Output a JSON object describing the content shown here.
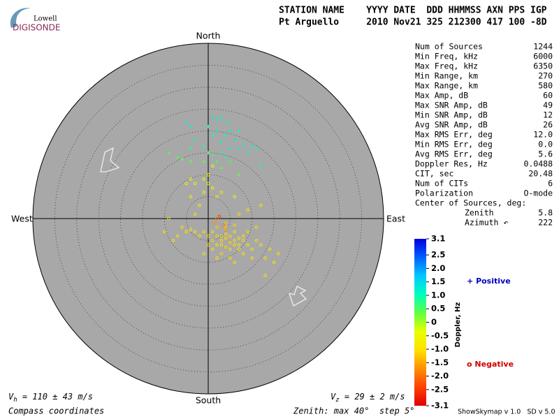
{
  "logo": {
    "line1": "Lowell",
    "line2": "DIGISONDE"
  },
  "header": {
    "labels": "STATION NAME    YYYY DATE  DDD HHMMSS AXN PPS IGP",
    "values": "Pt Arguello     2010 Nov21 325 212300 417 100 -8D"
  },
  "stats": {
    "rows": [
      [
        "Num of Sources",
        "1244"
      ],
      [
        "Min Freq, kHz",
        "6000"
      ],
      [
        "Max Freq, kHz",
        "6350"
      ],
      [
        "Min Range, km",
        "270"
      ],
      [
        "Max Range, km",
        "580"
      ],
      [
        "Max Amp, dB",
        "60"
      ],
      [
        "Max SNR Amp, dB",
        "49"
      ],
      [
        "Min SNR Amp, dB",
        "12"
      ],
      [
        "Avg SNR Amp, dB",
        "26"
      ],
      [
        "Max RMS Err, deg",
        "12.0"
      ],
      [
        "Min RMS Err, deg",
        "0.0"
      ],
      [
        "Avg RMS Err, deg",
        "5.6"
      ],
      [
        "Doppler Res, Hz",
        "0.0488"
      ],
      [
        "CIT, sec",
        "20.48"
      ],
      [
        "Num of CITs",
        "6"
      ],
      [
        "Polarization",
        "O-mode"
      ]
    ],
    "center_title": "Center of Sources, deg:",
    "center_rows": [
      [
        "Zenith",
        "5.8"
      ],
      [
        "Azimuth ↶",
        "222"
      ]
    ]
  },
  "chart_data": {
    "type": "skymap",
    "directions": {
      "north": "North",
      "south": "South",
      "west": "West",
      "east": "East"
    },
    "rlim": [
      0,
      40
    ],
    "rticks": [
      5,
      10,
      15,
      20,
      25,
      30,
      35,
      40
    ],
    "points": [
      [
        -5,
        22,
        1.2
      ],
      [
        -4,
        21,
        1.1
      ],
      [
        1,
        23,
        1.3
      ],
      [
        2,
        22.5,
        1.2
      ],
      [
        3,
        23,
        1.1
      ],
      [
        4.5,
        22,
        1.2
      ],
      [
        0,
        21,
        1.0
      ],
      [
        2,
        20,
        1.1
      ],
      [
        5,
        20,
        1.2
      ],
      [
        7,
        20,
        1.0
      ],
      [
        4,
        19,
        1.1
      ],
      [
        1,
        19,
        1.0
      ],
      [
        6,
        18,
        1.2
      ],
      [
        -3,
        18,
        1.0
      ],
      [
        3,
        17.5,
        1.1
      ],
      [
        8,
        17,
        1.2
      ],
      [
        10,
        16.5,
        1.1
      ],
      [
        11,
        16,
        1.0
      ],
      [
        -4,
        16,
        0.9
      ],
      [
        -1,
        16.5,
        1.0
      ],
      [
        5,
        16,
        1.1
      ],
      [
        7,
        16,
        1.2
      ],
      [
        3,
        15,
        0.9
      ],
      [
        9,
        15,
        1.0
      ],
      [
        1,
        14.5,
        0.8
      ],
      [
        4,
        14,
        0.9
      ],
      [
        12,
        12,
        1.0
      ],
      [
        -9,
        15,
        0.4
      ],
      [
        -7,
        14,
        0.5
      ],
      [
        -4,
        13,
        0.4
      ],
      [
        0,
        15,
        0.5
      ],
      [
        2,
        13,
        0.6
      ],
      [
        5,
        13,
        0.5
      ],
      [
        -6,
        13.5,
        0.3
      ],
      [
        -1,
        13,
        0.4
      ],
      [
        3,
        11.5,
        0.5
      ],
      [
        7,
        10,
        0.3
      ],
      [
        -4,
        9,
        -0.5
      ],
      [
        -1,
        9,
        -0.6
      ],
      [
        -5,
        8,
        -0.5
      ],
      [
        0,
        8,
        -0.6
      ],
      [
        1,
        7,
        -0.5
      ],
      [
        3,
        6,
        -0.7
      ],
      [
        6,
        5,
        -0.6
      ],
      [
        0,
        10,
        -0.5
      ],
      [
        1,
        12,
        -0.4
      ],
      [
        -3,
        8,
        -0.6
      ],
      [
        2,
        5,
        -0.8
      ],
      [
        -4,
        5,
        -0.7
      ],
      [
        -1,
        6,
        -0.7
      ],
      [
        -2,
        3,
        -0.8
      ],
      [
        1,
        -3,
        -1.0
      ],
      [
        2,
        -4,
        -1.1
      ],
      [
        3,
        -5,
        -1.0
      ],
      [
        4,
        -3.5,
        -1.0
      ],
      [
        5,
        -4,
        -1.1
      ],
      [
        6,
        -5,
        -1.0
      ],
      [
        7,
        -4.5,
        -0.9
      ],
      [
        3,
        -6,
        -1.0
      ],
      [
        4,
        -6.5,
        -1.1
      ],
      [
        5,
        -7,
        -1.0
      ],
      [
        2,
        -6,
        -0.9
      ],
      [
        6,
        -3,
        -1.0
      ],
      [
        8,
        -5,
        -1.0
      ],
      [
        9,
        -6,
        -0.9
      ],
      [
        7,
        -7,
        -1.0
      ],
      [
        1,
        -5,
        -1.1
      ],
      [
        0,
        -4,
        -1.0
      ],
      [
        -1,
        -3,
        -1.0
      ],
      [
        -2,
        -4,
        -0.9
      ],
      [
        -3,
        -3,
        -1.0
      ],
      [
        -4,
        -2.5,
        -1.0
      ],
      [
        -5,
        -3,
        -0.9
      ],
      [
        -6,
        -2,
        -1.0
      ],
      [
        -7,
        -4,
        -0.9
      ],
      [
        0,
        -6,
        -1.0
      ],
      [
        1,
        -7,
        -1.0
      ],
      [
        3,
        -8,
        -1.1
      ],
      [
        5,
        -9,
        -1.0
      ],
      [
        8,
        -8,
        -1.0
      ],
      [
        10,
        -7,
        -0.9
      ],
      [
        11,
        -5,
        -1.0
      ],
      [
        12,
        -6,
        -1.0
      ],
      [
        4,
        -2,
        -1.2
      ],
      [
        6,
        -1.5,
        -1.1
      ],
      [
        9,
        -3,
        -1.0
      ],
      [
        2,
        -2,
        -1.2
      ],
      [
        5,
        -5.5,
        -1.1
      ],
      [
        6,
        -6,
        -1.0
      ],
      [
        4,
        -4.5,
        -1.1
      ],
      [
        3,
        -4,
        -1.2
      ],
      [
        7,
        -6,
        -1.0
      ],
      [
        8,
        -4,
        -1.0
      ],
      [
        10,
        -9,
        -0.9
      ],
      [
        13,
        -9,
        -1.0
      ],
      [
        15,
        -10,
        -0.9
      ],
      [
        6,
        -10,
        -1.0
      ],
      [
        2,
        -9,
        -1.0
      ],
      [
        -1,
        -8,
        -0.9
      ],
      [
        -8,
        -5,
        -1.0
      ],
      [
        -10,
        -3,
        -0.9
      ],
      [
        12,
        3,
        -0.9
      ],
      [
        9,
        2,
        -1.0
      ],
      [
        7,
        1,
        -1.1
      ],
      [
        4,
        -1,
        -1.3
      ],
      [
        11,
        -2,
        -1.0
      ],
      [
        14,
        -7,
        -0.9
      ],
      [
        16,
        -8,
        -1.0
      ],
      [
        13,
        -13,
        -1.0
      ],
      [
        -3,
        1,
        -1.0
      ],
      [
        -9,
        0,
        -0.9
      ],
      [
        2,
        0,
        -1.8
      ],
      [
        1.5,
        -1,
        -1.7
      ],
      [
        4,
        -2.5,
        -1.6
      ],
      [
        2.5,
        0.5,
        -2.4
      ],
      [
        3.5,
        -1.5,
        -1.9
      ]
    ],
    "clim": [
      -3.1,
      3.1
    ],
    "colorscale": [
      "#e00000",
      "#ff4000",
      "#ff9000",
      "#ffe000",
      "#e8ff00",
      "#60ff40",
      "#00ffc0",
      "#00c8ff",
      "#0060ff",
      "#0000e0"
    ],
    "cticks": [
      3.1,
      2.5,
      {
        "value": 2,
        "label": "2.0"
      },
      1.5,
      {
        "value": 1,
        "label": "1.0"
      },
      0.5,
      0,
      -0.5,
      {
        "value": -1,
        "label": "-1.0"
      },
      -1.5,
      {
        "value": -2,
        "label": "-2.0"
      },
      -2.5,
      -3.1
    ],
    "colorbar_label": "Doppler, Hz",
    "legend": {
      "positive": "Positive",
      "negative": "Negative",
      "positive_marker": "+",
      "negative_marker": "o",
      "positive_color": "#0000c0",
      "negative_color": "#d00000"
    },
    "vh": {
      "symbol": "V",
      "sub": "h",
      "text": " = 110 ± 43 m/s"
    },
    "vz": {
      "symbol": "V",
      "sub": "z",
      "text": " = 29 ± 2 m/s"
    }
  },
  "footer": {
    "left": "Compass coordinates",
    "middle": "Zenith: max 40°  step 5°",
    "right": "ShowSkymap v 1.0   SD v 5.0"
  }
}
